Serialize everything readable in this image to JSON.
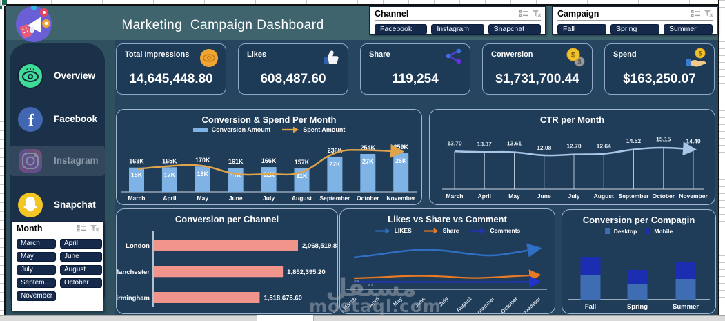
{
  "header": {
    "title": "Marketing  Campaign Dashboard"
  },
  "slicers": {
    "channel": {
      "title": "Channel",
      "options": [
        "Facebook",
        "Instagram",
        "Snapchat"
      ]
    },
    "campaign": {
      "title": "Campaign",
      "options": [
        "Fall",
        "Spring",
        "Summer"
      ]
    },
    "month": {
      "title": "Month",
      "options": [
        "March",
        "April",
        "May",
        "June",
        "July",
        "August",
        "Septem...",
        "October",
        "November"
      ]
    }
  },
  "kpis": [
    {
      "label": "Total Impressions",
      "value": "14,645,448.80",
      "icon": "impressions-eye-icon"
    },
    {
      "label": "Likes",
      "value": "608,487.60",
      "icon": "thumbs-up-icon"
    },
    {
      "label": "Share",
      "value": "119,254",
      "icon": "share-nodes-icon"
    },
    {
      "label": "Conversion",
      "value": "$1,731,700.44",
      "icon": "coins-icon"
    },
    {
      "label": "Spend",
      "value": "$163,250.07",
      "icon": "hand-coin-icon"
    }
  ],
  "sidebar": {
    "items": [
      {
        "label": "Overview",
        "icon": "eye-icon",
        "state": "normal"
      },
      {
        "label": "Facebook",
        "icon": "facebook-icon",
        "state": "normal"
      },
      {
        "label": "Instagram",
        "icon": "instagram-icon",
        "state": "selected-dimmed"
      },
      {
        "label": "Snapchat",
        "icon": "snapchat-icon",
        "state": "normal"
      }
    ]
  },
  "chart_data": [
    {
      "type": "combo",
      "title": "Conversion & Spend Per Month",
      "categories": [
        "March",
        "April",
        "May",
        "June",
        "July",
        "August",
        "September",
        "October",
        "November"
      ],
      "legend_position": "top",
      "series": [
        {
          "name": "Conversion Amount",
          "chart": "bar",
          "color": "#7fb2e5",
          "values_k": [
            163,
            165,
            170,
            161,
            166,
            157,
            236,
            254,
            259
          ],
          "labels": [
            "163K",
            "165K",
            "170K",
            "161K",
            "166K",
            "157K",
            "236K",
            "254K",
            "259K"
          ]
        },
        {
          "name": "Spent Amount",
          "chart": "line-arrow",
          "color": "#dfa44a",
          "values_k": [
            15,
            17,
            18,
            11,
            12,
            11,
            27,
            27,
            26
          ],
          "labels": [
            "15K",
            "17K",
            "18K",
            "11K",
            "12K",
            "11K",
            "27K",
            "27K",
            "26K"
          ]
        }
      ]
    },
    {
      "type": "line",
      "title": "CTR per Month",
      "categories": [
        "March",
        "April",
        "May",
        "June",
        "July",
        "August",
        "September",
        "October",
        "November"
      ],
      "values": [
        13.7,
        13.37,
        13.61,
        12.08,
        12.7,
        12.64,
        14.52,
        15.15,
        14.4
      ],
      "labels": [
        "13.70",
        "13.37",
        "13.61",
        "12.08",
        "12.70",
        "12.64",
        "14.52",
        "15.15",
        "14.40"
      ],
      "color": "#a9c6e8",
      "droplines": true
    },
    {
      "type": "bar",
      "orientation": "horizontal",
      "title": "Conversion per Channel",
      "categories": [
        "London",
        "Manchester",
        "Birmingham"
      ],
      "values": [
        2068519.8,
        1852395.2,
        1518675.6
      ],
      "labels": [
        "2,068,519.80",
        "1,852,395.20",
        "1,518,675.60"
      ],
      "color": "#f0948c"
    },
    {
      "type": "line",
      "title": "Likes vs Share vs Comment",
      "categories": [
        "March",
        "April",
        "May",
        "June",
        "July",
        "August",
        "September",
        "October",
        "November"
      ],
      "values_estimated": true,
      "series": [
        {
          "name": "LIKES",
          "color": "#2f6fc4",
          "relative_values": [
            41,
            45,
            50,
            53,
            51,
            46,
            43,
            48,
            54
          ]
        },
        {
          "name": "Share",
          "color": "#e87a25",
          "relative_values": [
            11,
            12,
            14,
            14.5,
            13.5,
            11,
            12,
            14,
            15.5
          ]
        },
        {
          "name": "Comments",
          "color": "#2233cc",
          "relative_values": [
            5.5,
            5.7,
            5.5,
            5.6,
            5.5,
            5.4,
            5.6,
            5.5,
            6
          ]
        }
      ]
    },
    {
      "type": "bar",
      "stacked": true,
      "title": "Conversion per Compagin",
      "categories": [
        "Fall",
        "Spring",
        "Summer"
      ],
      "values_estimated": true,
      "series": [
        {
          "name": "Desktop",
          "color": "#3e6db3",
          "relative_values": [
            35,
            23,
            30
          ]
        },
        {
          "name": "Mobile",
          "color": "#1b2eb1",
          "relative_values": [
            27,
            20,
            25
          ]
        }
      ]
    }
  ],
  "watermark": {
    "arabic": "مستقل",
    "latin": "mostaql.com"
  }
}
